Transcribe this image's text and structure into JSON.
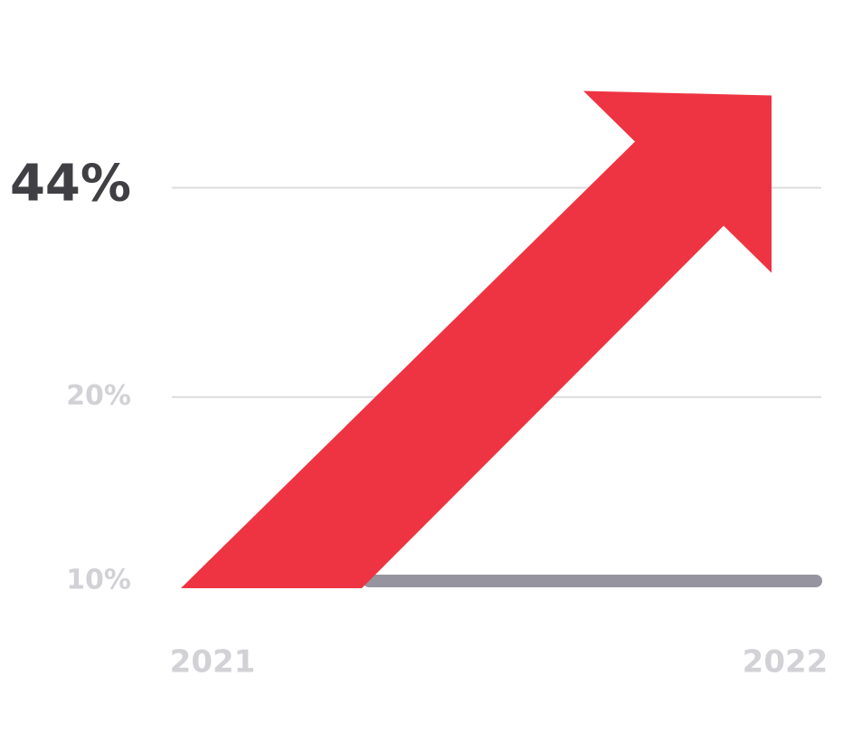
{
  "chart_data": {
    "type": "arrow",
    "categories": [
      "2021",
      "2022"
    ],
    "values": [
      10,
      44
    ],
    "color": "#ee3442",
    "baseline_color": "#96959f",
    "log_scale": true,
    "ylim": [
      10,
      50
    ],
    "yticks": [
      {
        "value": 44,
        "label": "44%"
      },
      {
        "value": 20,
        "label": "20%"
      },
      {
        "value": 10,
        "label": "10%"
      }
    ],
    "grid": true
  }
}
